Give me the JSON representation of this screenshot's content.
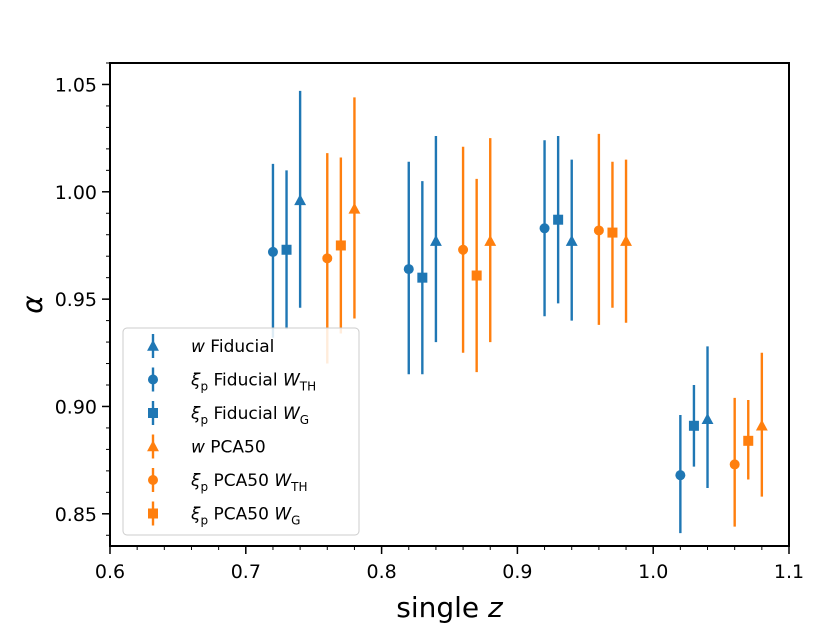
{
  "chart_data": {
    "type": "scatter",
    "subtype": "errorbar",
    "title": "",
    "xlabel": "single z",
    "xlabel_parts": [
      "single ",
      "z"
    ],
    "ylabel": "α",
    "xlim": [
      0.6,
      1.1
    ],
    "ylim": [
      0.835,
      1.06
    ],
    "xticks": [
      0.6,
      0.7,
      0.8,
      0.9,
      1.0,
      1.1
    ],
    "xtick_labels": [
      "0.6",
      "0.7",
      "0.8",
      "0.9",
      "1.0",
      "1.1"
    ],
    "yticks": [
      0.85,
      0.9,
      0.95,
      1.0,
      1.05
    ],
    "ytick_labels": [
      "0.85",
      "0.90",
      "0.95",
      "1.00",
      "1.05"
    ],
    "grid": false,
    "legend_position": "lower-left",
    "colors": {
      "fiducial": "#1f77b4",
      "pca50": "#ff7f0e"
    },
    "series": [
      {
        "name": "w Fiducial",
        "label_parts": {
          "sym": "w",
          "text": " Fiducial",
          "sub": "",
          "weight": "",
          "weight_sub": ""
        },
        "color": "#1f77b4",
        "marker": "triangle",
        "points": [
          {
            "x": 0.74,
            "y": 0.996,
            "lo": 0.946,
            "hi": 1.047
          },
          {
            "x": 0.84,
            "y": 0.977,
            "lo": 0.93,
            "hi": 1.026
          },
          {
            "x": 0.94,
            "y": 0.977,
            "lo": 0.94,
            "hi": 1.015
          },
          {
            "x": 1.04,
            "y": 0.894,
            "lo": 0.862,
            "hi": 0.928
          }
        ]
      },
      {
        "name": "ξp Fiducial WTH",
        "label_parts": {
          "sym": "ξ",
          "text": " Fiducial ",
          "sub": "p",
          "weight": "W",
          "weight_sub": "TH"
        },
        "color": "#1f77b4",
        "marker": "circle",
        "points": [
          {
            "x": 0.72,
            "y": 0.972,
            "lo": 0.932,
            "hi": 1.013
          },
          {
            "x": 0.82,
            "y": 0.964,
            "lo": 0.915,
            "hi": 1.014
          },
          {
            "x": 0.92,
            "y": 0.983,
            "lo": 0.942,
            "hi": 1.024
          },
          {
            "x": 1.02,
            "y": 0.868,
            "lo": 0.841,
            "hi": 0.896
          }
        ]
      },
      {
        "name": "ξp Fiducial WG",
        "label_parts": {
          "sym": "ξ",
          "text": " Fiducial ",
          "sub": "p",
          "weight": "W",
          "weight_sub": "G"
        },
        "color": "#1f77b4",
        "marker": "square",
        "points": [
          {
            "x": 0.73,
            "y": 0.973,
            "lo": 0.936,
            "hi": 1.01
          },
          {
            "x": 0.83,
            "y": 0.96,
            "lo": 0.915,
            "hi": 1.005
          },
          {
            "x": 0.93,
            "y": 0.987,
            "lo": 0.948,
            "hi": 1.026
          },
          {
            "x": 1.03,
            "y": 0.891,
            "lo": 0.872,
            "hi": 0.91
          }
        ]
      },
      {
        "name": "w PCA50",
        "label_parts": {
          "sym": "w",
          "text": " PCA50",
          "sub": "",
          "weight": "",
          "weight_sub": ""
        },
        "color": "#ff7f0e",
        "marker": "triangle",
        "points": [
          {
            "x": 0.78,
            "y": 0.992,
            "lo": 0.941,
            "hi": 1.044
          },
          {
            "x": 0.88,
            "y": 0.977,
            "lo": 0.93,
            "hi": 1.025
          },
          {
            "x": 0.98,
            "y": 0.977,
            "lo": 0.939,
            "hi": 1.015
          },
          {
            "x": 1.08,
            "y": 0.891,
            "lo": 0.858,
            "hi": 0.925
          }
        ]
      },
      {
        "name": "ξp PCA50 WTH",
        "label_parts": {
          "sym": "ξ",
          "text": " PCA50 ",
          "sub": "p",
          "weight": "W",
          "weight_sub": "TH"
        },
        "color": "#ff7f0e",
        "marker": "circle",
        "points": [
          {
            "x": 0.76,
            "y": 0.969,
            "lo": 0.92,
            "hi": 1.018
          },
          {
            "x": 0.86,
            "y": 0.973,
            "lo": 0.925,
            "hi": 1.021
          },
          {
            "x": 0.96,
            "y": 0.982,
            "lo": 0.938,
            "hi": 1.027
          },
          {
            "x": 1.06,
            "y": 0.873,
            "lo": 0.844,
            "hi": 0.904
          }
        ]
      },
      {
        "name": "ξp PCA50 WG",
        "label_parts": {
          "sym": "ξ",
          "text": " PCA50 ",
          "sub": "p",
          "weight": "W",
          "weight_sub": "G"
        },
        "color": "#ff7f0e",
        "marker": "square",
        "points": [
          {
            "x": 0.77,
            "y": 0.975,
            "lo": 0.934,
            "hi": 1.016
          },
          {
            "x": 0.87,
            "y": 0.961,
            "lo": 0.916,
            "hi": 1.006
          },
          {
            "x": 0.97,
            "y": 0.981,
            "lo": 0.946,
            "hi": 1.014
          },
          {
            "x": 1.07,
            "y": 0.884,
            "lo": 0.866,
            "hi": 0.903
          }
        ]
      }
    ]
  }
}
